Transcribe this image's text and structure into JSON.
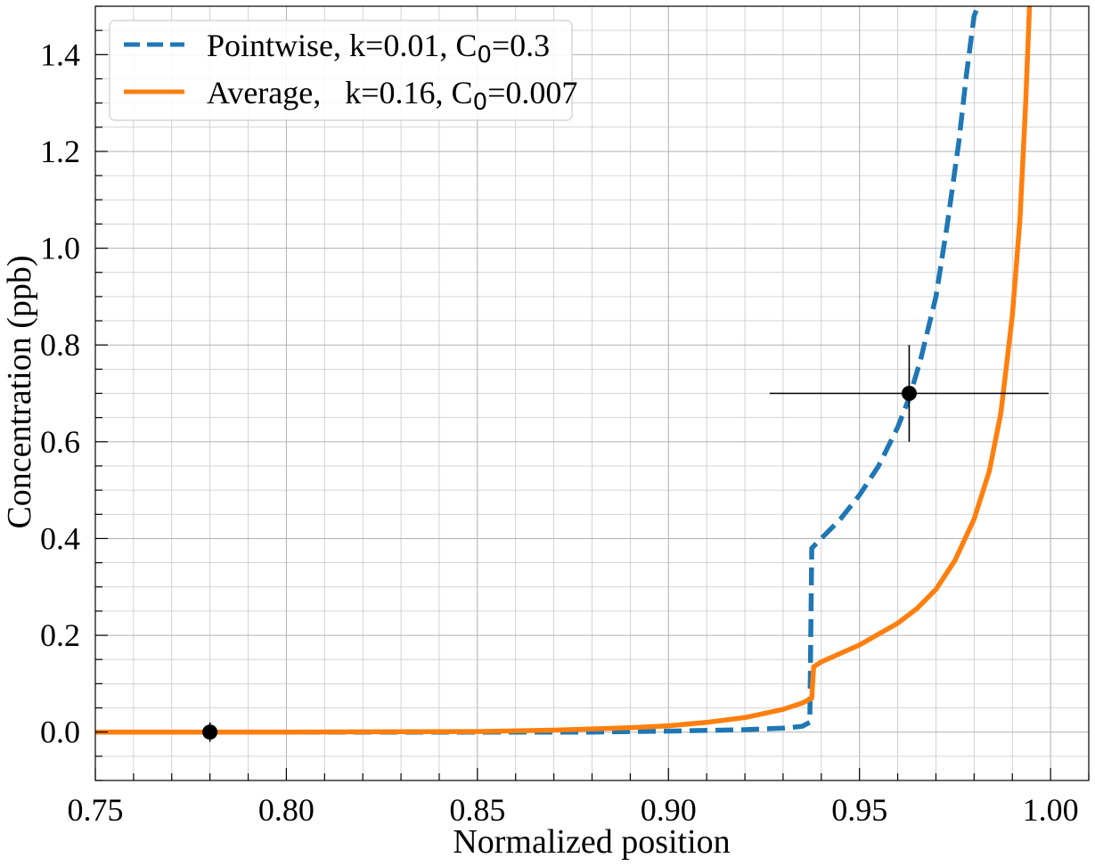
{
  "chart_data": {
    "type": "line",
    "xlabel": "Normalized position",
    "ylabel": "Concentration (ppb)",
    "xlim": [
      0.75,
      1.01
    ],
    "ylim": [
      -0.1,
      1.5
    ],
    "x_ticks": [
      0.75,
      0.8,
      0.85,
      0.9,
      0.95,
      1.0
    ],
    "x_tick_labels": [
      "0.75",
      "0.80",
      "0.85",
      "0.90",
      "0.95",
      "1.00"
    ],
    "y_ticks": [
      0.0,
      0.2,
      0.4,
      0.6,
      0.8,
      1.0,
      1.2,
      1.4
    ],
    "y_tick_labels": [
      "0.0",
      "0.2",
      "0.4",
      "0.6",
      "0.8",
      "1.0",
      "1.2",
      "1.4"
    ],
    "grid": true,
    "legend_position": "top-left",
    "series": [
      {
        "name": "Pointwise, k=0.01, C",
        "name_sub": "0",
        "name_tail": "=0.3",
        "style": "dashed",
        "color": "#1f77b4",
        "x": [
          0.75,
          0.8,
          0.85,
          0.88,
          0.9,
          0.92,
          0.93,
          0.935,
          0.937,
          0.9375,
          0.94,
          0.945,
          0.95,
          0.955,
          0.96,
          0.963,
          0.966,
          0.97,
          0.973,
          0.976,
          0.978,
          0.98,
          0.981
        ],
        "y": [
          0.0,
          0.0,
          0.0,
          0.0,
          0.002,
          0.005,
          0.008,
          0.012,
          0.02,
          0.38,
          0.4,
          0.44,
          0.49,
          0.55,
          0.63,
          0.69,
          0.77,
          0.9,
          1.05,
          1.22,
          1.36,
          1.48,
          1.5
        ]
      },
      {
        "name": "Average,   k=0.16, C",
        "name_sub": "0",
        "name_tail": "=0.007",
        "style": "solid",
        "color": "#ff7f0e",
        "x": [
          0.75,
          0.8,
          0.85,
          0.87,
          0.89,
          0.9,
          0.91,
          0.92,
          0.93,
          0.935,
          0.9375,
          0.938,
          0.94,
          0.95,
          0.96,
          0.965,
          0.97,
          0.975,
          0.98,
          0.984,
          0.987,
          0.99,
          0.992,
          0.9935,
          0.9945
        ],
        "y": [
          0.0,
          0.0,
          0.001,
          0.004,
          0.009,
          0.013,
          0.02,
          0.03,
          0.047,
          0.06,
          0.07,
          0.135,
          0.145,
          0.18,
          0.225,
          0.255,
          0.295,
          0.355,
          0.44,
          0.54,
          0.66,
          0.86,
          1.06,
          1.3,
          1.5
        ]
      }
    ],
    "points": [
      {
        "x": 0.78,
        "y": 0.0,
        "xerr": 0.0,
        "yerr": 0.02
      },
      {
        "x": 0.963,
        "y": 0.7,
        "xerr": 0.0365,
        "yerr": 0.1
      }
    ]
  }
}
